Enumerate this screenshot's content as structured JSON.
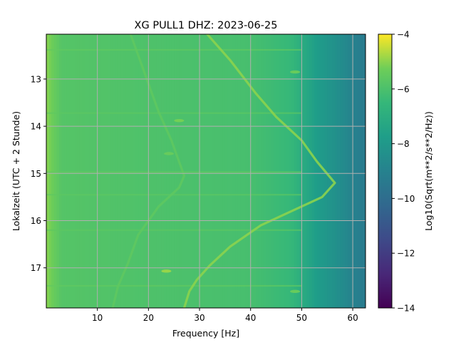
{
  "chart_data": {
    "type": "heatmap",
    "title": "XG PULL1  DHZ: 2023-06-25",
    "xlabel": "Frequency [Hz]",
    "ylabel": "Lokalzeit (UTC + 2 Stunde)",
    "colorbar_label": "Log10(Sqrt(m**2/s**2/Hz))",
    "xlim": [
      0,
      62.5
    ],
    "ylim": [
      17.85,
      12.05
    ],
    "x_ticks": [
      10,
      20,
      30,
      40,
      50,
      60
    ],
    "y_ticks": [
      13,
      14,
      15,
      16,
      17
    ],
    "colorbar_range": [
      -14,
      -4
    ],
    "colorbar_ticks": [
      -4,
      -6,
      -8,
      -10,
      -12,
      -14
    ],
    "colormap": "viridis",
    "grid": true,
    "background_level": -6.2,
    "high_freq_rolloff": [
      {
        "hz": 0,
        "level": -5.0
      },
      {
        "hz": 3,
        "level": -5.8
      },
      {
        "hz": 40,
        "level": -6.1
      },
      {
        "hz": 48,
        "level": -6.5
      },
      {
        "hz": 53,
        "level": -7.8
      },
      {
        "hz": 57,
        "level": -8.4
      },
      {
        "hz": 60,
        "level": -9.0
      },
      {
        "hz": 62.5,
        "level": -9.4
      }
    ],
    "tracks": [
      {
        "level": -5.0,
        "points": [
          [
            31.5,
            12.05
          ],
          [
            36,
            12.6
          ],
          [
            41,
            13.3
          ],
          [
            45,
            13.8
          ],
          [
            50,
            14.3
          ],
          [
            53,
            14.75
          ],
          [
            56.5,
            15.2
          ],
          [
            54,
            15.5
          ],
          [
            47,
            15.85
          ],
          [
            42,
            16.1
          ],
          [
            36,
            16.55
          ],
          [
            32,
            16.95
          ],
          [
            29.5,
            17.25
          ],
          [
            28,
            17.5
          ],
          [
            27,
            17.85
          ]
        ]
      },
      {
        "level": -5.6,
        "points": [
          [
            16.5,
            12.05
          ],
          [
            19,
            12.8
          ],
          [
            22,
            13.7
          ],
          [
            24.5,
            14.3
          ],
          [
            27,
            15.05
          ],
          [
            26,
            15.3
          ],
          [
            22,
            15.7
          ],
          [
            18,
            16.3
          ],
          [
            16,
            16.9
          ],
          [
            14,
            17.4
          ],
          [
            13,
            17.85
          ]
        ]
      }
    ],
    "bright_spots": [
      {
        "hz": 23.5,
        "hour": 17.07,
        "level": -4.9
      },
      {
        "hz": 26,
        "hour": 13.88,
        "level": -5.2
      },
      {
        "hz": 24,
        "hour": 14.58,
        "level": -5.4
      },
      {
        "hz": 48.7,
        "hour": 12.85,
        "level": -5.4
      },
      {
        "hz": 48.7,
        "hour": 17.5,
        "level": -5.4
      }
    ],
    "bright_rows": [
      {
        "hour": 12.38,
        "level": -5.5
      },
      {
        "hour": 13.72,
        "level": -5.6
      },
      {
        "hour": 14.97,
        "level": -5.5
      },
      {
        "hour": 15.45,
        "level": -5.6
      },
      {
        "hour": 16.2,
        "level": -5.6
      },
      {
        "hour": 17.38,
        "level": -5.5
      }
    ]
  }
}
